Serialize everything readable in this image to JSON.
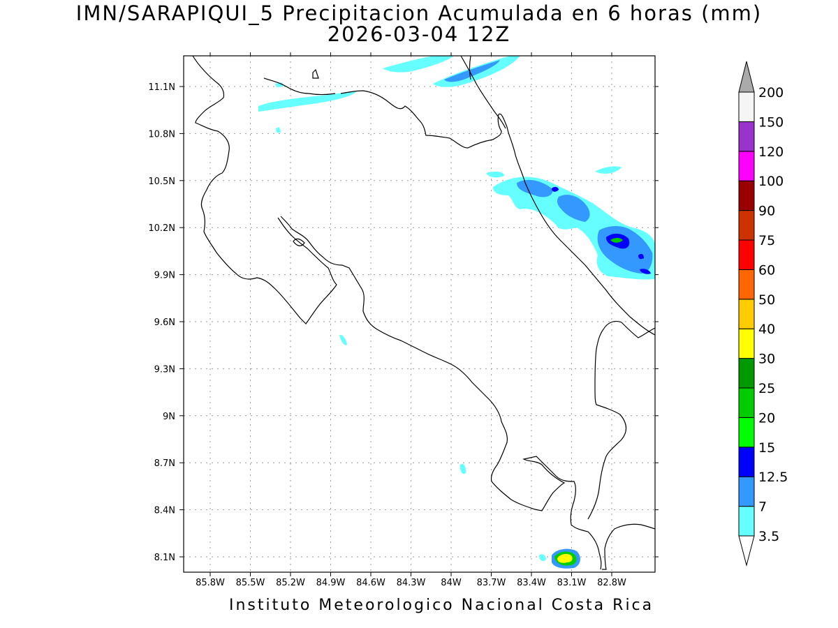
{
  "title": {
    "line1": "IMN/SARAPIQUI_5 Precipitacion Acumulada en 6 horas (mm)",
    "line2": "2026-03-04 12Z"
  },
  "footer": "Instituto Meteorologico Nacional Costa Rica",
  "map": {
    "lon_labels": [
      "85.8W",
      "85.5W",
      "85.2W",
      "84.9W",
      "84.6W",
      "84.3W",
      "84W",
      "83.7W",
      "83.4W",
      "83.1W",
      "82.8W"
    ],
    "lat_labels": [
      "11.1N",
      "10.8N",
      "10.5N",
      "10.2N",
      "9.9N",
      "9.6N",
      "9.3N",
      "9N",
      "8.7N",
      "8.4N",
      "8.1N"
    ]
  },
  "colorbar": {
    "labels": [
      "3.5",
      "7",
      "12.5",
      "15",
      "20",
      "25",
      "30",
      "40",
      "50",
      "60",
      "75",
      "90",
      "100",
      "120",
      "150",
      "200"
    ],
    "colors": [
      "#66ffff",
      "#3399ff",
      "#0000ff",
      "#00ff00",
      "#00cc00",
      "#009900",
      "#ffff00",
      "#ffcc00",
      "#ff6600",
      "#ff0000",
      "#cc3300",
      "#990000",
      "#ff00ff",
      "#9933cc",
      "#f5f5f5",
      "#aaaaaa"
    ]
  }
}
